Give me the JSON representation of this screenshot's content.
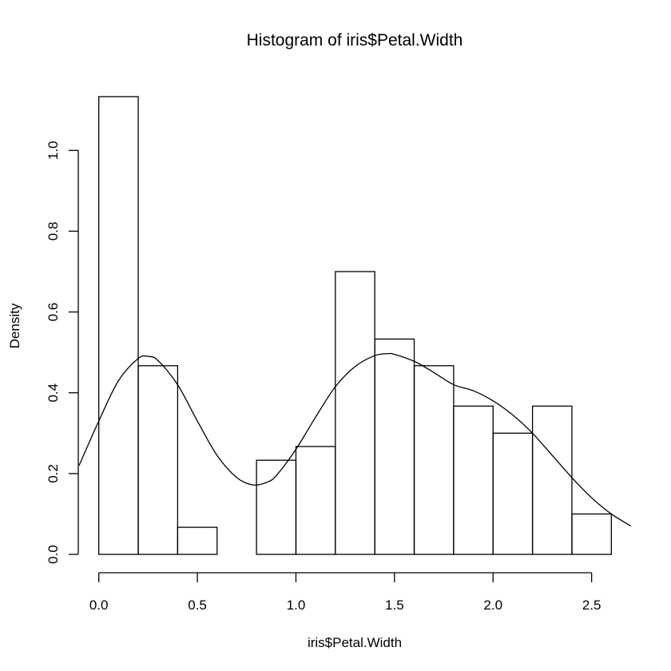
{
  "chart_data": {
    "type": "bar",
    "title": "Histogram of iris$Petal.Width",
    "xlabel": "iris$Petal.Width",
    "ylabel": "Density",
    "bins": [
      {
        "start": 0.0,
        "end": 0.2,
        "density": 1.133
      },
      {
        "start": 0.2,
        "end": 0.4,
        "density": 0.467
      },
      {
        "start": 0.4,
        "end": 0.6,
        "density": 0.067
      },
      {
        "start": 0.6,
        "end": 0.8,
        "density": 0.0
      },
      {
        "start": 0.8,
        "end": 1.0,
        "density": 0.233
      },
      {
        "start": 1.0,
        "end": 1.2,
        "density": 0.267
      },
      {
        "start": 1.2,
        "end": 1.4,
        "density": 0.7
      },
      {
        "start": 1.4,
        "end": 1.6,
        "density": 0.533
      },
      {
        "start": 1.6,
        "end": 1.8,
        "density": 0.467
      },
      {
        "start": 1.8,
        "end": 2.0,
        "density": 0.367
      },
      {
        "start": 2.0,
        "end": 2.2,
        "density": 0.3
      },
      {
        "start": 2.2,
        "end": 2.4,
        "density": 0.367
      },
      {
        "start": 2.4,
        "end": 2.6,
        "density": 0.1
      }
    ],
    "density_curve": {
      "x": [
        -0.1,
        0.0,
        0.1,
        0.2,
        0.25,
        0.3,
        0.4,
        0.5,
        0.6,
        0.7,
        0.78,
        0.85,
        0.9,
        1.0,
        1.1,
        1.2,
        1.3,
        1.4,
        1.47,
        1.5,
        1.6,
        1.7,
        1.8,
        1.9,
        2.0,
        2.1,
        2.2,
        2.3,
        2.4,
        2.5,
        2.6,
        2.7
      ],
      "y": [
        0.22,
        0.33,
        0.43,
        0.485,
        0.49,
        0.48,
        0.42,
        0.33,
        0.245,
        0.19,
        0.172,
        0.178,
        0.195,
        0.26,
        0.34,
        0.415,
        0.465,
        0.492,
        0.497,
        0.495,
        0.478,
        0.45,
        0.42,
        0.405,
        0.38,
        0.345,
        0.3,
        0.245,
        0.19,
        0.14,
        0.1,
        0.07
      ]
    },
    "xlim": [
      -0.1,
      2.7
    ],
    "ylim": [
      0,
      1.133
    ],
    "x_ticks": [
      0.0,
      0.5,
      1.0,
      1.5,
      2.0,
      2.5
    ],
    "x_tick_labels": [
      "0.0",
      "0.5",
      "1.0",
      "1.5",
      "2.0",
      "2.5"
    ],
    "y_ticks": [
      0.0,
      0.2,
      0.4,
      0.6,
      0.8,
      1.0
    ],
    "y_tick_labels": [
      "0.0",
      "0.2",
      "0.4",
      "0.6",
      "0.8",
      "1.0"
    ],
    "grid": false,
    "legend": "none"
  }
}
